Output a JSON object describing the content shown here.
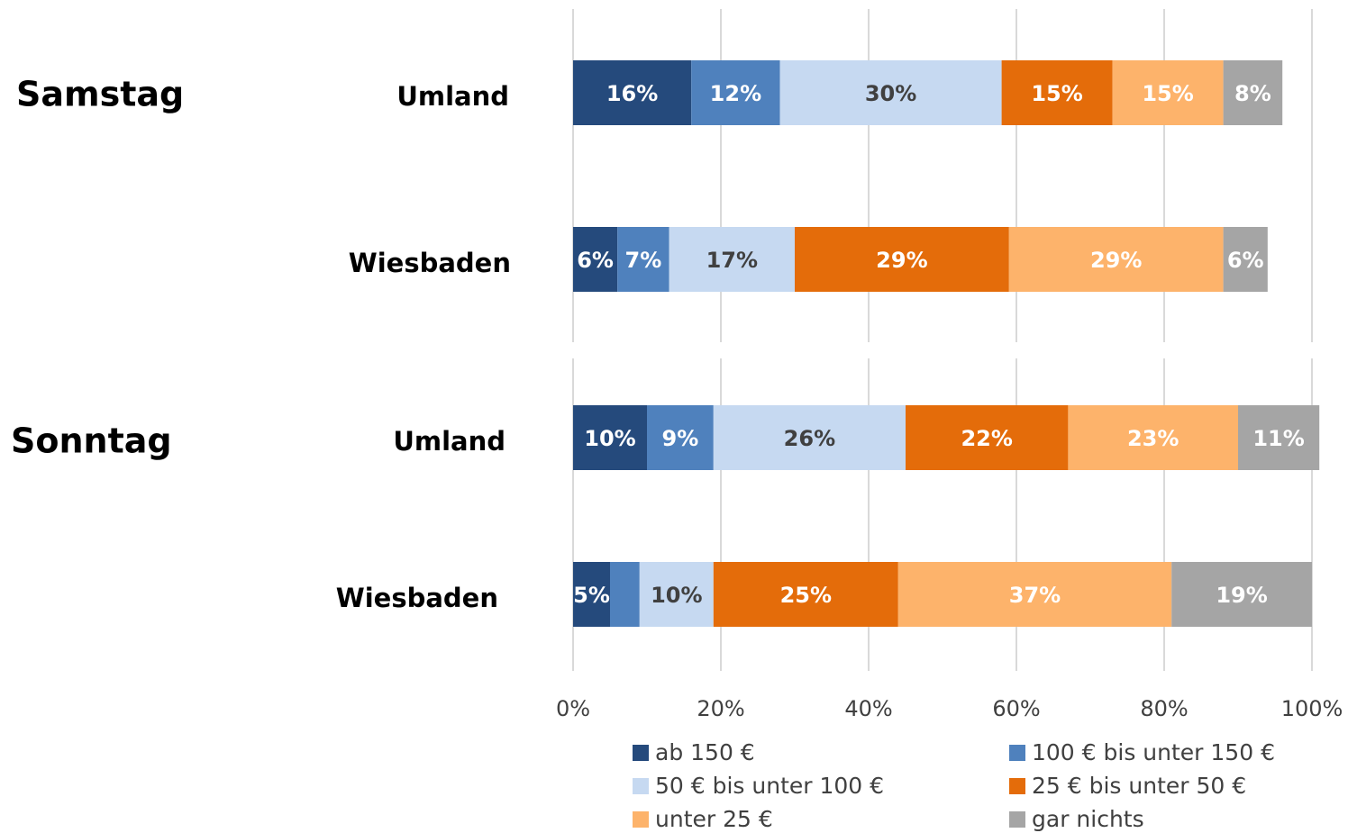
{
  "chart_data": {
    "type": "stacked_bar_horizontal",
    "group_labels": [
      "Samstag",
      "Sonntag"
    ],
    "categories": [
      "Umland",
      "Wiesbaden",
      "Umland",
      "Wiesbaden"
    ],
    "xlim": [
      0,
      100
    ],
    "xticks": [
      {
        "value": 0,
        "label": "0%"
      },
      {
        "value": 20,
        "label": "20%"
      },
      {
        "value": 40,
        "label": "40%"
      },
      {
        "value": 60,
        "label": "60%"
      },
      {
        "value": 80,
        "label": "80%"
      },
      {
        "value": 100,
        "label": "100%"
      }
    ],
    "grid": true,
    "series": [
      {
        "name": "ab 150 €",
        "color": "#254a7c",
        "values": [
          16,
          6,
          10,
          5
        ],
        "value_labels": [
          "16%",
          "6%",
          "10%",
          "5%"
        ]
      },
      {
        "name": "100 € bis unter 150 €",
        "color": "#4f81bd",
        "values": [
          12,
          7,
          9,
          4
        ],
        "value_labels": [
          "12%",
          "7%",
          "9%",
          null
        ]
      },
      {
        "name": "50 € bis unter 100 €",
        "color": "#c6d9f1",
        "values": [
          30,
          17,
          26,
          10
        ],
        "value_labels": [
          "30%",
          "17%",
          "26%",
          "10%"
        ]
      },
      {
        "name": "25 € bis unter 50 €",
        "color": "#e46c0a",
        "values": [
          15,
          29,
          22,
          25
        ],
        "value_labels": [
          "15%",
          "29%",
          "22%",
          "25%"
        ]
      },
      {
        "name": "unter 25 €",
        "color": "#fdb36b",
        "values": [
          15,
          29,
          23,
          37
        ],
        "value_labels": [
          "15%",
          "29%",
          "23%",
          "37%"
        ]
      },
      {
        "name": "gar nichts",
        "color": "#a5a5a5",
        "values": [
          8,
          6,
          11,
          19
        ],
        "value_labels": [
          "8%",
          "6%",
          "11%",
          "19%"
        ]
      }
    ]
  }
}
